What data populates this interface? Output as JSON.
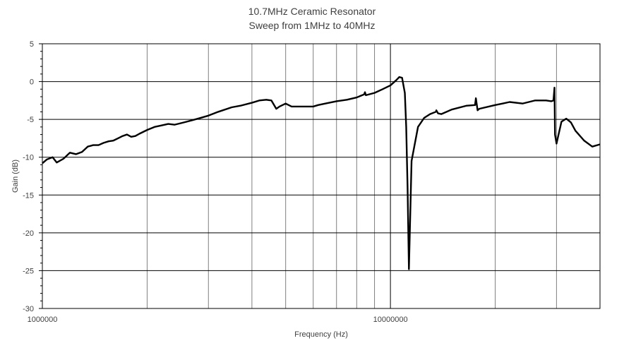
{
  "chart_data": {
    "type": "line",
    "title": "10.7MHz Ceramic Resonator",
    "subtitle": "Sweep from  1MHz to 40MHz",
    "xlabel": "Frequency (Hz)",
    "ylabel": "Gain (dB)",
    "xscale": "log",
    "xlim": [
      1000000,
      40000000
    ],
    "ylim": [
      -30,
      5
    ],
    "x_tick_labels": [
      "1000000",
      "10000000"
    ],
    "y_tick_labels": [
      "5",
      "0",
      "-5",
      "-10",
      "-15",
      "-20",
      "-25",
      "-30"
    ],
    "y_ticks": [
      5,
      0,
      -5,
      -10,
      -15,
      -20,
      -25,
      -30
    ],
    "grid": true,
    "series": [
      {
        "color": "#000000",
        "x": [
          1000000,
          1030000,
          1070000,
          1100000,
          1150000,
          1200000,
          1250000,
          1300000,
          1350000,
          1400000,
          1450000,
          1500000,
          1550000,
          1600000,
          1650000,
          1700000,
          1750000,
          1800000,
          1850000,
          1900000,
          2000000,
          2100000,
          2200000,
          2300000,
          2400000,
          2500000,
          2600000,
          2700000,
          2800000,
          3000000,
          3200000,
          3500000,
          3700000,
          4000000,
          4200000,
          4400000,
          4550000,
          4700000,
          4800000,
          5000000,
          5200000,
          5500000,
          6000000,
          6200000,
          6500000,
          7000000,
          7500000,
          8000000,
          8400000,
          8450000,
          8500000,
          9000000,
          9500000,
          10000000,
          10400000,
          10600000,
          10800000,
          11000000,
          11100000,
          11200000,
          11300000,
          11500000,
          12000000,
          12500000,
          13000000,
          13500000,
          13550000,
          13700000,
          14000000,
          15000000,
          16500000,
          17500000,
          17600000,
          17800000,
          18000000,
          20000000,
          21000000,
          22000000,
          24000000,
          26000000,
          28000000,
          29000000,
          29400000,
          29600000,
          29700000,
          30000000,
          31000000,
          32000000,
          33000000,
          34000000,
          36000000,
          38000000,
          40000000
        ],
        "y": [
          -10.8,
          -10.3,
          -10.0,
          -10.7,
          -10.2,
          -9.4,
          -9.6,
          -9.3,
          -8.6,
          -8.4,
          -8.4,
          -8.1,
          -7.9,
          -7.8,
          -7.5,
          -7.2,
          -7.0,
          -7.3,
          -7.2,
          -6.9,
          -6.4,
          -6.0,
          -5.8,
          -5.6,
          -5.7,
          -5.5,
          -5.3,
          -5.1,
          -4.9,
          -4.5,
          -4.0,
          -3.4,
          -3.2,
          -2.8,
          -2.5,
          -2.4,
          -2.5,
          -3.6,
          -3.3,
          -2.9,
          -3.3,
          -3.3,
          -3.3,
          -3.1,
          -2.9,
          -2.6,
          -2.4,
          -2.1,
          -1.7,
          -1.4,
          -1.8,
          -1.5,
          -1.0,
          -0.5,
          0.2,
          0.6,
          0.5,
          -1.5,
          -6.0,
          -14.0,
          -24.8,
          -10.5,
          -6.0,
          -4.8,
          -4.3,
          -4.0,
          -3.8,
          -4.2,
          -4.3,
          -3.7,
          -3.2,
          -3.1,
          -2.2,
          -3.8,
          -3.6,
          -3.1,
          -2.9,
          -2.7,
          -2.9,
          -2.5,
          -2.5,
          -2.6,
          -2.5,
          -0.8,
          -7.0,
          -8.2,
          -5.3,
          -4.9,
          -5.4,
          -6.5,
          -7.8,
          -8.6,
          -8.3
        ]
      }
    ]
  }
}
